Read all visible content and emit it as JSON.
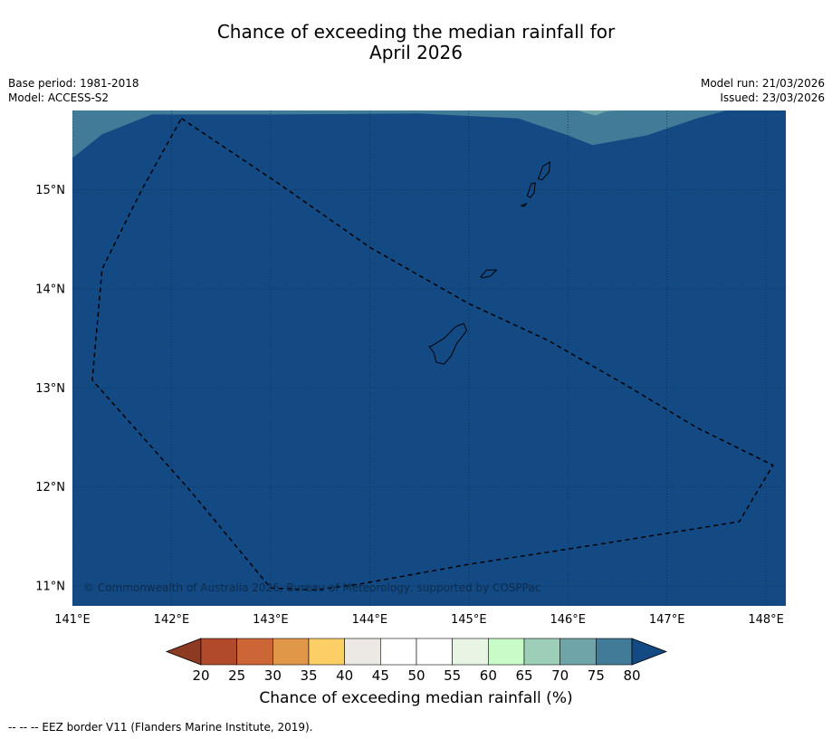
{
  "title": {
    "line1": "Chance of exceeding the median rainfall for",
    "line2": "April 2026"
  },
  "meta": {
    "base_period": "Base period: 1981-2018",
    "model": "Model: ACCESS-S2",
    "model_run": "Model run: 21/03/2026",
    "issued": "Issued: 23/03/2026"
  },
  "map": {
    "lon_range": [
      141,
      148.2
    ],
    "lat_range": [
      10.8,
      15.8
    ],
    "lon_ticks": [
      141,
      142,
      143,
      144,
      145,
      146,
      147,
      148
    ],
    "lat_ticks": [
      11,
      12,
      13,
      14,
      15
    ],
    "lon_tick_labels": [
      "141°E",
      "142°E",
      "143°E",
      "144°E",
      "145°E",
      "146°E",
      "147°E",
      "148°E"
    ],
    "lat_tick_labels": [
      "11°N",
      "12°N",
      "13°N",
      "14°N",
      "15°N"
    ],
    "dominant_category": "80+",
    "colors": {
      "ocean": "#134a84",
      "band_75_80": "#427b98",
      "band_70_75": "#6fa5a9",
      "grid": "#0c2f52",
      "border": "#000000"
    },
    "eez_border": [
      [
        142.1,
        15.72
      ],
      [
        143.1,
        15.05
      ],
      [
        144.0,
        14.42
      ],
      [
        145.0,
        13.85
      ],
      [
        145.8,
        13.48
      ],
      [
        146.6,
        13.02
      ],
      [
        147.3,
        12.6
      ],
      [
        148.07,
        12.22
      ],
      [
        147.73,
        11.65
      ],
      [
        146.3,
        11.42
      ],
      [
        145.0,
        11.22
      ],
      [
        143.9,
        11.02
      ],
      [
        143.45,
        10.96
      ],
      [
        143.0,
        10.98
      ],
      [
        142.2,
        11.95
      ],
      [
        141.2,
        13.08
      ],
      [
        141.3,
        14.2
      ],
      [
        141.7,
        15.0
      ]
    ],
    "islands": [
      {
        "name": "Guam",
        "outline": [
          [
            144.62,
            13.42
          ],
          [
            144.75,
            13.5
          ],
          [
            144.87,
            13.62
          ],
          [
            144.95,
            13.65
          ],
          [
            144.98,
            13.58
          ],
          [
            144.88,
            13.45
          ],
          [
            144.82,
            13.32
          ],
          [
            144.75,
            13.24
          ],
          [
            144.67,
            13.26
          ],
          [
            144.65,
            13.35
          ],
          [
            144.6,
            13.42
          ]
        ]
      },
      {
        "name": "Rota",
        "outline": [
          [
            145.12,
            14.12
          ],
          [
            145.18,
            14.19
          ],
          [
            145.28,
            14.19
          ],
          [
            145.22,
            14.13
          ],
          [
            145.14,
            14.11
          ]
        ]
      },
      {
        "name": "Tinian",
        "outline": [
          [
            145.59,
            14.94
          ],
          [
            145.63,
            15.06
          ],
          [
            145.67,
            15.07
          ],
          [
            145.66,
            14.97
          ],
          [
            145.62,
            14.92
          ]
        ]
      },
      {
        "name": "Saipan",
        "outline": [
          [
            145.7,
            15.11
          ],
          [
            145.75,
            15.24
          ],
          [
            145.82,
            15.28
          ],
          [
            145.81,
            15.18
          ],
          [
            145.74,
            15.1
          ]
        ]
      },
      {
        "name": "Aguijan",
        "outline": [
          [
            145.53,
            14.84
          ],
          [
            145.58,
            14.86
          ],
          [
            145.56,
            14.83
          ]
        ]
      }
    ],
    "copyright": "© Commonwealth of Australia 2026, Bureau of Meteorology, supported by COSPPac"
  },
  "colorbar": {
    "label": "Chance of exceeding median rainfall (%)",
    "ticks": [
      "20",
      "25",
      "30",
      "35",
      "40",
      "45",
      "50",
      "55",
      "60",
      "65",
      "70",
      "75",
      "80"
    ],
    "under_color": "#8d3a22",
    "over_color": "#134a84",
    "colors": [
      "#b04a2a",
      "#cd6636",
      "#e19748",
      "#fccf66",
      "#ece8e4",
      "#ffffff",
      "#ffffff",
      "#e9f5e4",
      "#c9fbc8",
      "#9dcfb8",
      "#6fa5a9",
      "#427b98"
    ]
  },
  "footnote": "--  --  -- EEZ border V11 (Flanders Marine Institute, 2019)."
}
